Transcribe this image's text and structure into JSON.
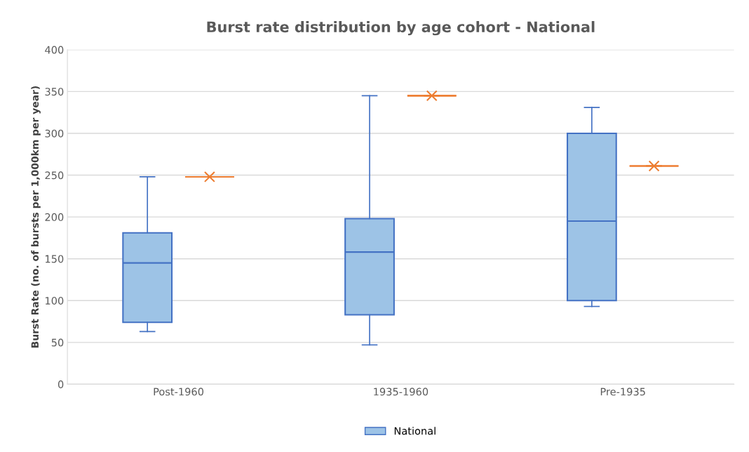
{
  "chart_data": {
    "type": "box",
    "title": "Burst rate distribution by age cohort - National",
    "ylabel": "Burst Rate (no. of bursts per 1,000km per year)",
    "categories": [
      "Post-1960",
      "1935-1960",
      "Pre-1935"
    ],
    "series": [
      {
        "name": "National",
        "color": "#9dc3e6",
        "boxes": [
          {
            "low": 63,
            "q1": 74,
            "median": 145,
            "q3": 181,
            "high": 248
          },
          {
            "low": 47,
            "q1": 83,
            "median": 158,
            "q3": 198,
            "high": 345
          },
          {
            "low": 93,
            "q1": 100,
            "median": 195,
            "q3": 300,
            "high": 331
          }
        ]
      },
      {
        "color": "#ed7d31",
        "boxes": [
          {
            "low": 248,
            "q1": 248,
            "median": 248,
            "q3": 248,
            "high": 248,
            "mean": 248
          },
          {
            "low": 345,
            "q1": 345,
            "median": 345,
            "q3": 345,
            "high": 345,
            "mean": 345
          },
          {
            "low": 261,
            "q1": 261,
            "median": 261,
            "q3": 261,
            "high": 261,
            "mean": 261
          }
        ]
      }
    ],
    "ylim": [
      0,
      400
    ],
    "yticks": [
      0,
      50,
      100,
      150,
      200,
      250,
      300,
      350,
      400
    ],
    "grid": "y",
    "legend": "bottom",
    "marker": "cross"
  }
}
